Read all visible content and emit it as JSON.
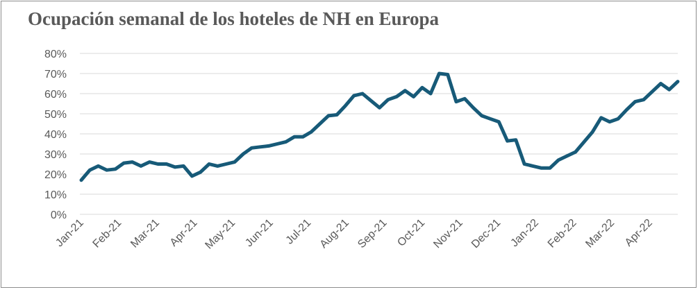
{
  "chart_data": {
    "type": "line",
    "title": "Ocupación semanal de los hoteles de NH en Europa",
    "xlabel": "",
    "ylabel": "",
    "ylim": [
      0,
      0.8
    ],
    "yticks": [
      "0%",
      "10%",
      "20%",
      "30%",
      "40%",
      "50%",
      "60%",
      "70%",
      "80%"
    ],
    "grid": "horizontal",
    "legend": "none",
    "colors": {
      "line": "#175a78",
      "grid": "#d9d9d9",
      "text": "#595959"
    },
    "x_tick_labels": [
      "Jan-21",
      "Feb-21",
      "Mar-21",
      "Apr-21",
      "May-21",
      "Jun-21",
      "Jul-21",
      "Aug-21",
      "Sep-21",
      "Oct-21",
      "Nov-21",
      "Dec-21",
      "Jan-22",
      "Feb-22",
      "Mar-22",
      "Apr-22"
    ],
    "series": [
      {
        "values": [
          0.17,
          0.22,
          0.24,
          0.22,
          0.225,
          0.255,
          0.26,
          0.24,
          0.26,
          0.25,
          0.25,
          0.235,
          0.24,
          0.19,
          0.21,
          0.25,
          0.24,
          0.25,
          0.26,
          0.3,
          0.33,
          0.335,
          0.34,
          0.35,
          0.36,
          0.385,
          0.385,
          0.41,
          0.45,
          0.49,
          0.495,
          0.54,
          0.59,
          0.6,
          0.565,
          0.53,
          0.57,
          0.585,
          0.615,
          0.585,
          0.63,
          0.6,
          0.7,
          0.695,
          0.56,
          0.575,
          0.53,
          0.49,
          0.475,
          0.46,
          0.365,
          0.37,
          0.25,
          0.24,
          0.23,
          0.23,
          0.27,
          0.29,
          0.31,
          0.36,
          0.41,
          0.48,
          0.46,
          0.475,
          0.52,
          0.56,
          0.57,
          0.61,
          0.65,
          0.62,
          0.66
        ]
      }
    ]
  }
}
